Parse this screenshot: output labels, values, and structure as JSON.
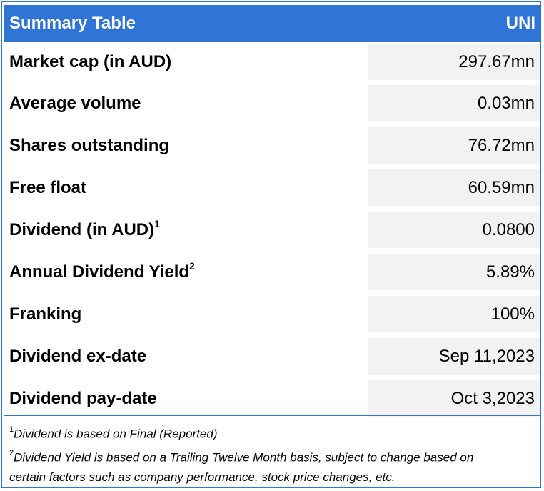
{
  "header": {
    "title": "Summary Table",
    "ticker": "UNI"
  },
  "rows": [
    {
      "label": "Market cap (in AUD)",
      "sup": "",
      "value": "297.67mn"
    },
    {
      "label": "Average volume",
      "sup": "",
      "value": "0.03mn"
    },
    {
      "label": "Shares outstanding",
      "sup": "",
      "value": "76.72mn"
    },
    {
      "label": "Free float",
      "sup": "",
      "value": "60.59mn"
    },
    {
      "label": "Dividend (in AUD)",
      "sup": "1",
      "value": "0.0800"
    },
    {
      "label": "Annual Dividend Yield",
      "sup": "2",
      "value": "5.89%"
    },
    {
      "label": "Franking",
      "sup": "",
      "value": "100%"
    },
    {
      "label": "Dividend ex-date",
      "sup": "",
      "value": "Sep 11,2023"
    },
    {
      "label": "Dividend pay-date",
      "sup": "",
      "value": "Oct 3,2023"
    }
  ],
  "footnotes": [
    {
      "num": "1",
      "line1": "Dividend is based on Final (Reported)",
      "line2": ""
    },
    {
      "num": "2",
      "line1": "Dividend Yield is based on a Trailing Twelve Month basis, subject to change based on",
      "line2": "certain factors such as company performance, stock price changes, etc."
    }
  ],
  "colors": {
    "accent": "#2e75d6",
    "value_bg": "#f2f2f2"
  }
}
